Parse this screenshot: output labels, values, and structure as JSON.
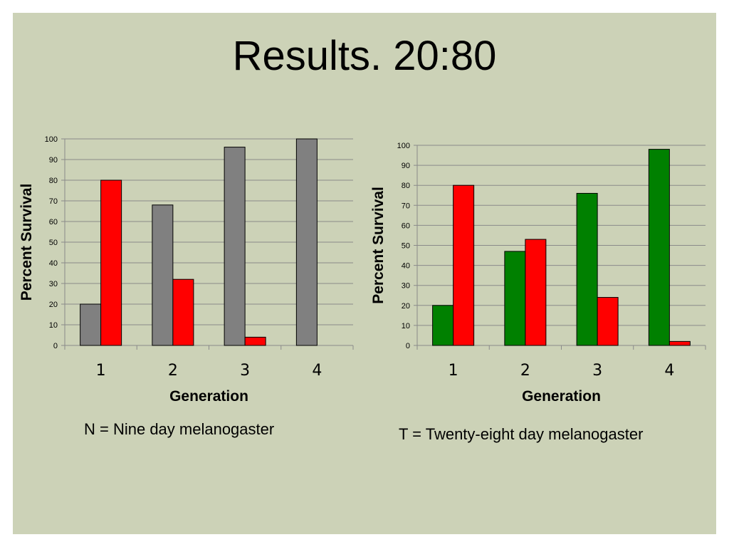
{
  "slide": {
    "title": "Results. 20:80"
  },
  "chart_data": [
    {
      "type": "bar",
      "categories": [
        "1",
        "2",
        "3",
        "4"
      ],
      "series": [
        {
          "color": "#808080",
          "values": [
            20,
            68,
            96,
            100
          ]
        },
        {
          "color": "#ff0000",
          "values": [
            80,
            32,
            4,
            0
          ]
        }
      ],
      "xlabel": "Generation",
      "ylabel": "Percent Survival",
      "ylim": [
        0,
        100
      ],
      "yticks": [
        "0",
        "10",
        "20",
        "30",
        "40",
        "50",
        "60",
        "70",
        "80",
        "90",
        "100"
      ],
      "grid": true,
      "caption": "N = Nine day melanogaster"
    },
    {
      "type": "bar",
      "categories": [
        "1",
        "2",
        "3",
        "4"
      ],
      "series": [
        {
          "color": "#008000",
          "values": [
            20,
            47,
            76,
            98
          ]
        },
        {
          "color": "#ff0000",
          "values": [
            80,
            53,
            24,
            2
          ]
        }
      ],
      "xlabel": "Generation",
      "ylabel": "Percent Survival",
      "ylim": [
        0,
        100
      ],
      "yticks": [
        "0",
        "10",
        "20",
        "30",
        "40",
        "50",
        "60",
        "70",
        "80",
        "90",
        "100"
      ],
      "grid": true,
      "caption": "T = Twenty-eight day melanogaster"
    }
  ]
}
